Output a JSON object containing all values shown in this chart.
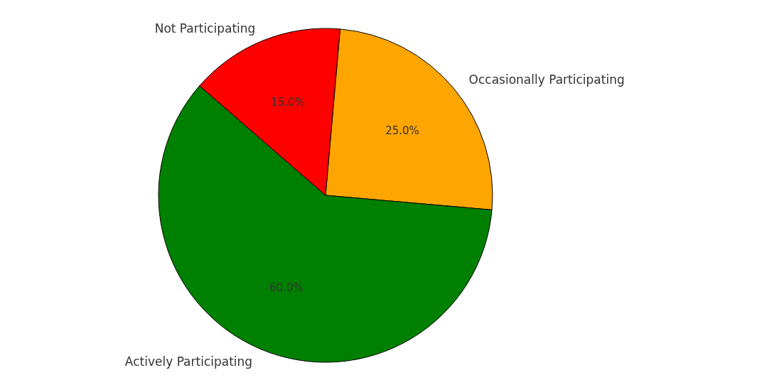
{
  "chart_data": {
    "type": "pie",
    "categories": [
      "Occasionally Participating",
      "Actively Participating",
      "Not Participating"
    ],
    "values": [
      25,
      60,
      15
    ],
    "colors": [
      "#ffa500",
      "#008000",
      "#ff0000"
    ],
    "value_labels": [
      "25.0%",
      "60.0%",
      "15.0%"
    ]
  }
}
